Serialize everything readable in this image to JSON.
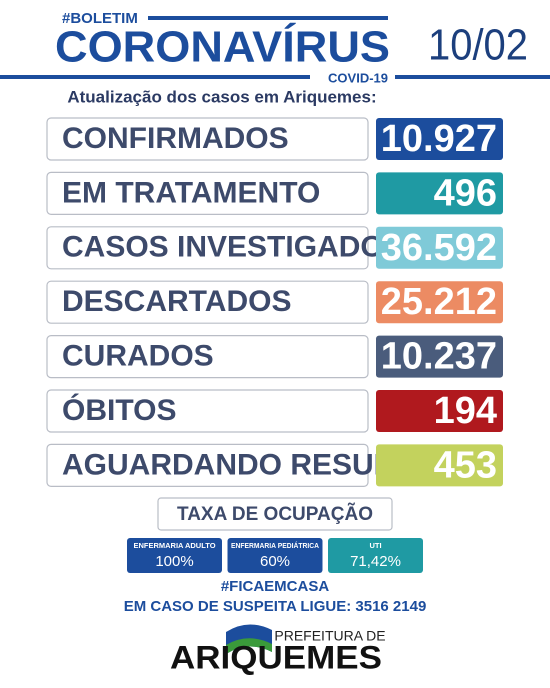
{
  "header": {
    "tag": "#BOLETIM",
    "title": "CORONAVÍRUS",
    "subtitle": "COVID-19",
    "date": "10/02",
    "intro": "Atualização dos casos em Ariquemes:"
  },
  "rows": [
    {
      "label": "CONFIRMADOS",
      "value": "10.927",
      "color": "#1c4d9d"
    },
    {
      "label": "EM TRATAMENTO",
      "value": "496",
      "color": "#1f9aa3"
    },
    {
      "label": "CASOS INVESTIGADOS",
      "value": "36.592",
      "color": "#7fcad8"
    },
    {
      "label": "DESCARTADOS",
      "value": "25.212",
      "color": "#ec8b63"
    },
    {
      "label": "CURADOS",
      "value": "10.237",
      "color": "#4a5c7c"
    },
    {
      "label": "ÓBITOS",
      "value": "194",
      "color": "#b0191e"
    },
    {
      "label": "AGUARDANDO RESULTADO",
      "value": "453",
      "color": "#c3d25d"
    }
  ],
  "occupancy": {
    "title": "TAXA DE OCUPAÇÃO",
    "items": [
      {
        "label": "ENFERMARIA ADULTO",
        "value": "100%",
        "color": "#1c4d9d"
      },
      {
        "label": "ENFERMARIA PEDIÁTRICA",
        "value": "60%",
        "color": "#1c4d9d"
      },
      {
        "label": "UTI",
        "value": "71,42%",
        "color": "#1f9aa3"
      }
    ]
  },
  "footer": {
    "hashtag": "#FICAEMCASA",
    "phone_note": "EM CASO DE SUSPEITA LIGUE: 3516 2149",
    "logo_top": "PREFEITURA DE",
    "logo_name": "ARIQUEMES"
  }
}
